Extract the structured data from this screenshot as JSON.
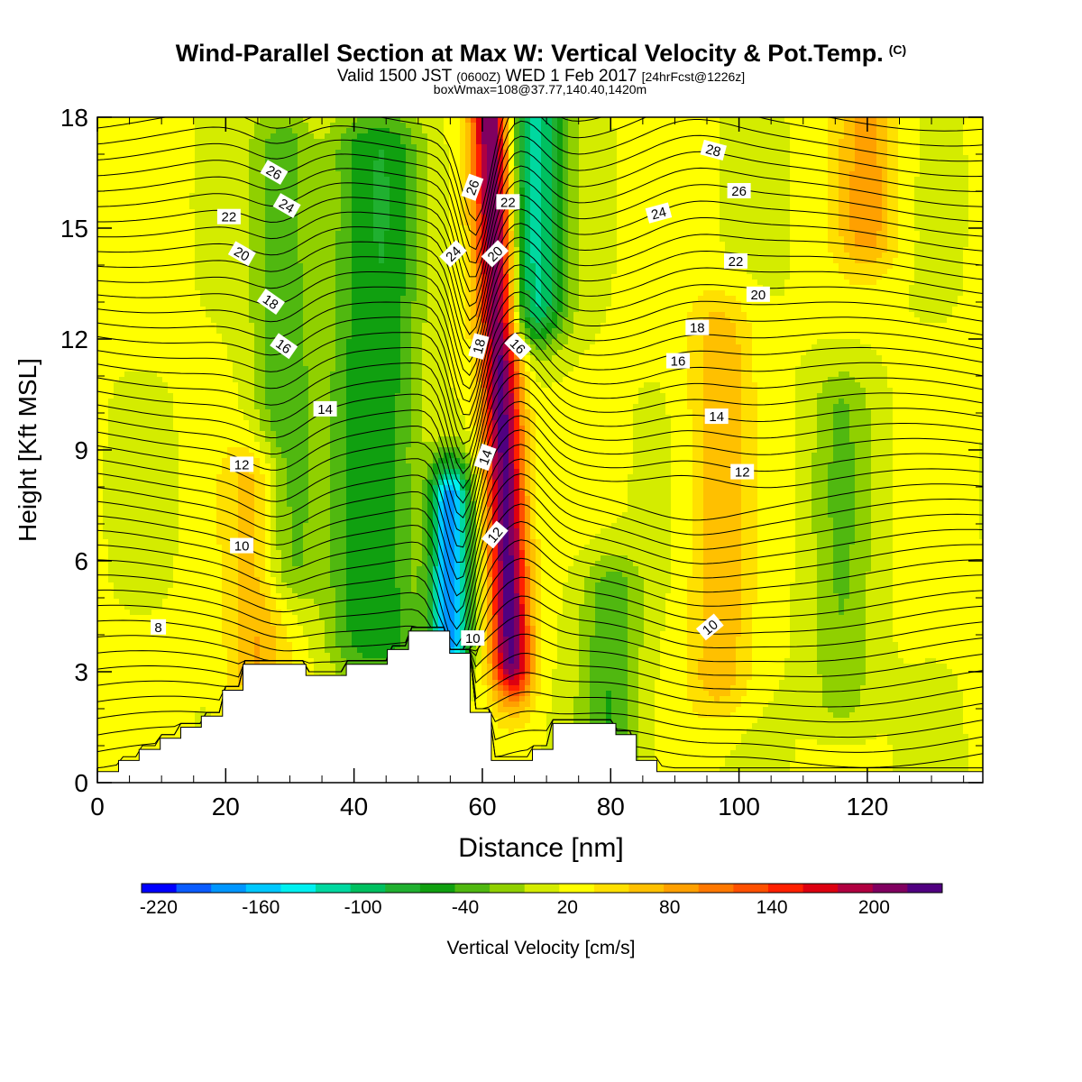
{
  "titles": {
    "main": "Wind-Parallel Section at Max W: Vertical Velocity & Pot.Temp.",
    "copyright": "(C)",
    "valid_a": "Valid 1500 JST",
    "valid_b": "(0600Z)",
    "valid_c": "WED 1 Feb 2017",
    "valid_d": "[24hrFcst@1226z]",
    "box": "boxWmax=108@37.77,140.40,1420m"
  },
  "chart_data": {
    "type": "heatmap",
    "xlabel": "Distance [nm]",
    "ylabel": "Height [Kft MSL]",
    "xlim": [
      0,
      138
    ],
    "ylim": [
      0,
      18
    ],
    "x_ticks": [
      "0",
      "20",
      "40",
      "60",
      "80",
      "100",
      "120"
    ],
    "y_ticks": [
      "0",
      "3",
      "6",
      "9",
      "12",
      "15",
      "18"
    ],
    "colorbar": {
      "label": "Vertical Velocity [cm/s]",
      "range": [
        -230,
        220
      ],
      "step": 20,
      "tick_labels": [
        "-220",
        "-160",
        "-100",
        "-40",
        "20",
        "80",
        "140",
        "200"
      ],
      "colors": [
        "#0000ff",
        "#0a5cff",
        "#0096ff",
        "#00c8ff",
        "#00f0f0",
        "#00d8a0",
        "#00c060",
        "#20b030",
        "#10a010",
        "#50b810",
        "#90d000",
        "#d4ec00",
        "#ffff00",
        "#ffe000",
        "#ffc000",
        "#ffa000",
        "#ff7800",
        "#ff5000",
        "#ff2000",
        "#dd0010",
        "#b00040",
        "#800060",
        "#500080"
      ]
    },
    "vertical_velocity_features": [
      {
        "x": 61.5,
        "y_from": 3.5,
        "y_to": 18,
        "value": 210,
        "note": "updraft core"
      },
      {
        "x": 55,
        "y_from": 4.0,
        "y_to": 7.5,
        "value": -200,
        "note": "downdraft lee of terrain"
      },
      {
        "x": 68,
        "y_from": 13,
        "y_to": 18,
        "value": -130,
        "note": "downdraft aloft"
      },
      {
        "x": 29,
        "y_from": 6,
        "y_to": 17,
        "value": -60
      },
      {
        "x": 40,
        "y_from": 4,
        "y_to": 17,
        "value": -55
      },
      {
        "x": 46,
        "y_from": 4,
        "y_to": 17,
        "value": -60
      },
      {
        "x": 80,
        "y_from": 1,
        "y_to": 5,
        "value": -60
      },
      {
        "x": 116,
        "y_from": 2.5,
        "y_to": 10,
        "value": -40
      },
      {
        "x": 25,
        "y_from": 3,
        "y_to": 8,
        "value": 60
      },
      {
        "x": 97,
        "y_from": 3,
        "y_to": 12,
        "value": 55
      },
      {
        "x": 120,
        "y_from": 15,
        "y_to": 18,
        "value": 65
      }
    ],
    "potential_temperature": {
      "unit": "C",
      "contour_labels": [
        {
          "text": "26",
          "x": 27.5,
          "y": 16.5,
          "angle": 30
        },
        {
          "text": "24",
          "x": 29.5,
          "y": 15.6,
          "angle": 30
        },
        {
          "text": "22",
          "x": 20.5,
          "y": 15.3,
          "angle": 0
        },
        {
          "text": "20",
          "x": 22.5,
          "y": 14.3,
          "angle": 30
        },
        {
          "text": "18",
          "x": 27,
          "y": 13.0,
          "angle": 35
        },
        {
          "text": "16",
          "x": 29,
          "y": 11.8,
          "angle": 35
        },
        {
          "text": "14",
          "x": 35.5,
          "y": 10.1,
          "angle": 0
        },
        {
          "text": "12",
          "x": 22.5,
          "y": 8.6,
          "angle": 0
        },
        {
          "text": "10",
          "x": 22.5,
          "y": 6.4,
          "angle": 0
        },
        {
          "text": "8",
          "x": 9.5,
          "y": 4.2,
          "angle": 0
        },
        {
          "text": "26",
          "x": 58.5,
          "y": 16.1,
          "angle": -70
        },
        {
          "text": "22",
          "x": 64,
          "y": 15.7,
          "angle": 0
        },
        {
          "text": "24",
          "x": 55.5,
          "y": 14.3,
          "angle": -45
        },
        {
          "text": "20",
          "x": 62,
          "y": 14.3,
          "angle": -45
        },
        {
          "text": "18",
          "x": 59.5,
          "y": 11.8,
          "angle": -75
        },
        {
          "text": "16",
          "x": 65.5,
          "y": 11.8,
          "angle": 45
        },
        {
          "text": "14",
          "x": 60.5,
          "y": 8.8,
          "angle": -70
        },
        {
          "text": "12",
          "x": 62,
          "y": 6.7,
          "angle": -50
        },
        {
          "text": "10",
          "x": 58.5,
          "y": 3.9,
          "angle": 0
        },
        {
          "text": "28",
          "x": 96,
          "y": 17.1,
          "angle": 15
        },
        {
          "text": "26",
          "x": 100,
          "y": 16.0,
          "angle": 0
        },
        {
          "text": "24",
          "x": 87.5,
          "y": 15.4,
          "angle": -15
        },
        {
          "text": "22",
          "x": 99.5,
          "y": 14.1,
          "angle": 0
        },
        {
          "text": "20",
          "x": 103,
          "y": 13.2,
          "angle": 0
        },
        {
          "text": "18",
          "x": 93.5,
          "y": 12.3,
          "angle": 0
        },
        {
          "text": "16",
          "x": 90.5,
          "y": 11.4,
          "angle": 0
        },
        {
          "text": "14",
          "x": 96.5,
          "y": 9.9,
          "angle": 0
        },
        {
          "text": "12",
          "x": 100.5,
          "y": 8.4,
          "angle": 0
        },
        {
          "text": "10",
          "x": 95.5,
          "y": 4.2,
          "angle": -40
        }
      ]
    },
    "terrain_kft": [
      [
        0,
        0.3
      ],
      [
        3.3,
        0.6
      ],
      [
        6.5,
        0.9
      ],
      [
        9.8,
        1.2
      ],
      [
        13,
        1.5
      ],
      [
        16.2,
        1.8
      ],
      [
        19.5,
        2.5
      ],
      [
        22.7,
        3.2
      ],
      [
        32.5,
        2.9
      ],
      [
        38.8,
        3.2
      ],
      [
        45.2,
        3.6
      ],
      [
        48.5,
        4.1
      ],
      [
        54.9,
        3.5
      ],
      [
        58.1,
        1.9
      ],
      [
        61.4,
        0.6
      ],
      [
        67.8,
        0.9
      ],
      [
        71,
        1.6
      ],
      [
        80.8,
        1.3
      ],
      [
        84,
        0.6
      ],
      [
        87.2,
        0.3
      ],
      [
        138,
        0.3
      ]
    ]
  }
}
